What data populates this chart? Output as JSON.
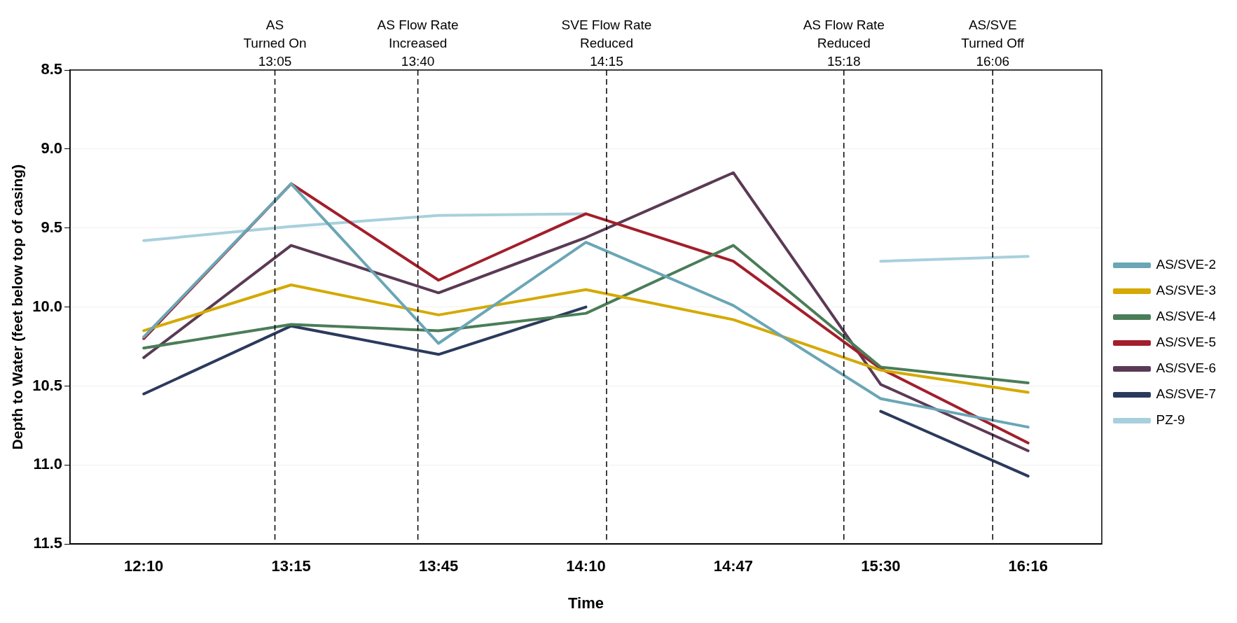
{
  "chart_data": {
    "type": "line",
    "xlabel": "Time",
    "ylabel": "Depth to Water (feet below top of casing)",
    "categories": [
      "12:10",
      "13:15",
      "13:45",
      "14:10",
      "14:47",
      "15:30",
      "16:16"
    ],
    "series": [
      {
        "name": "AS/SVE-2",
        "color": "#6aa6b6",
        "values": [
          10.19,
          9.22,
          10.23,
          9.59,
          9.99,
          10.58,
          10.76
        ]
      },
      {
        "name": "AS/SVE-3",
        "color": "#d4a900",
        "values": [
          10.15,
          9.86,
          10.05,
          9.89,
          10.08,
          10.4,
          10.54
        ]
      },
      {
        "name": "AS/SVE-4",
        "color": "#4a7d58",
        "values": [
          10.26,
          10.11,
          10.15,
          10.04,
          9.61,
          10.38,
          10.48
        ]
      },
      {
        "name": "AS/SVE-5",
        "color": "#a21f2b",
        "values": [
          10.2,
          9.22,
          9.83,
          9.41,
          9.71,
          10.39,
          10.86
        ]
      },
      {
        "name": "AS/SVE-6",
        "color": "#5a3a55",
        "values": [
          10.32,
          9.61,
          9.91,
          9.56,
          9.15,
          10.49,
          10.91
        ]
      },
      {
        "name": "AS/SVE-7",
        "color": "#2b3a5c",
        "values": [
          10.55,
          10.12,
          10.3,
          10.0,
          null,
          10.66,
          11.07
        ]
      },
      {
        "name": "PZ-9",
        "color": "#a8d0dc",
        "values": [
          9.58,
          9.49,
          9.42,
          9.41,
          null,
          9.71,
          9.68
        ]
      }
    ],
    "ylim": [
      11.5,
      8.5
    ],
    "yticks": [
      {
        "value": 8.5,
        "label": "8.5"
      },
      {
        "value": 9,
        "label": "9.0"
      },
      {
        "value": 9.5,
        "label": "9.5"
      },
      {
        "value": 10,
        "label": "10.0"
      },
      {
        "value": 10.5,
        "label": "10.5"
      },
      {
        "value": 11,
        "label": "11.0"
      },
      {
        "value": 11.5,
        "label": "11.5"
      }
    ],
    "grid": "y",
    "legend": "right",
    "marker": "none",
    "line_style": "solid",
    "annotations": [
      "AS\nTurned On\n13:05",
      "AS Flow Rate\nIncreased\n13:40",
      "SVE Flow Rate\nReduced\n14:15",
      "AS Flow Rate\nReduced\n15:18",
      "AS/SVE\nTurned Off\n16:06"
    ]
  }
}
